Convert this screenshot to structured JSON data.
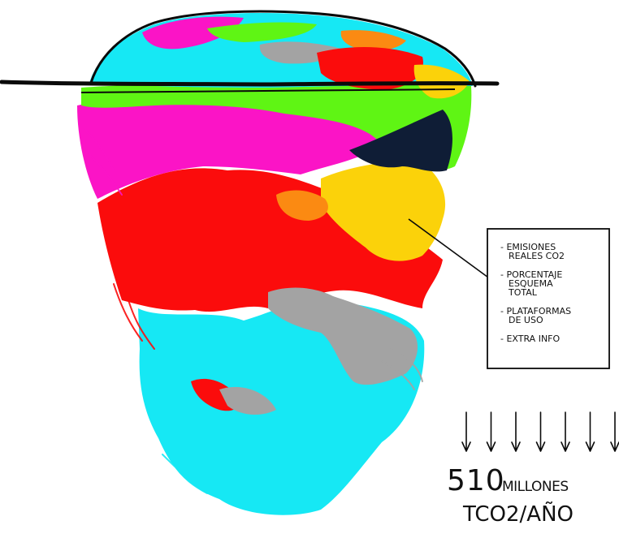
{
  "sketch": {
    "legend_items": [
      [
        "- EMISIONES",
        "REALES CO2"
      ],
      [
        "- PORCENTAJE",
        "ESQUEMA",
        "TOTAL"
      ],
      [
        "- PLATAFORMAS",
        "DE USO"
      ],
      [
        "- EXTRA INFO"
      ]
    ],
    "total_value": "510",
    "total_unit": "MILLONES",
    "total_unit_line2": "TCO2/AÑO",
    "arrow_count": 7,
    "colors": {
      "cyan": "#16e8f4",
      "magenta": "#fb14c6",
      "red": "#fb0c0c",
      "green": "#5ff514",
      "yellow": "#fbd20a",
      "gray": "#a3a3a3",
      "orange": "#fb8a12",
      "navy": "#0f1d36",
      "ink": "#0a0a0a"
    }
  }
}
